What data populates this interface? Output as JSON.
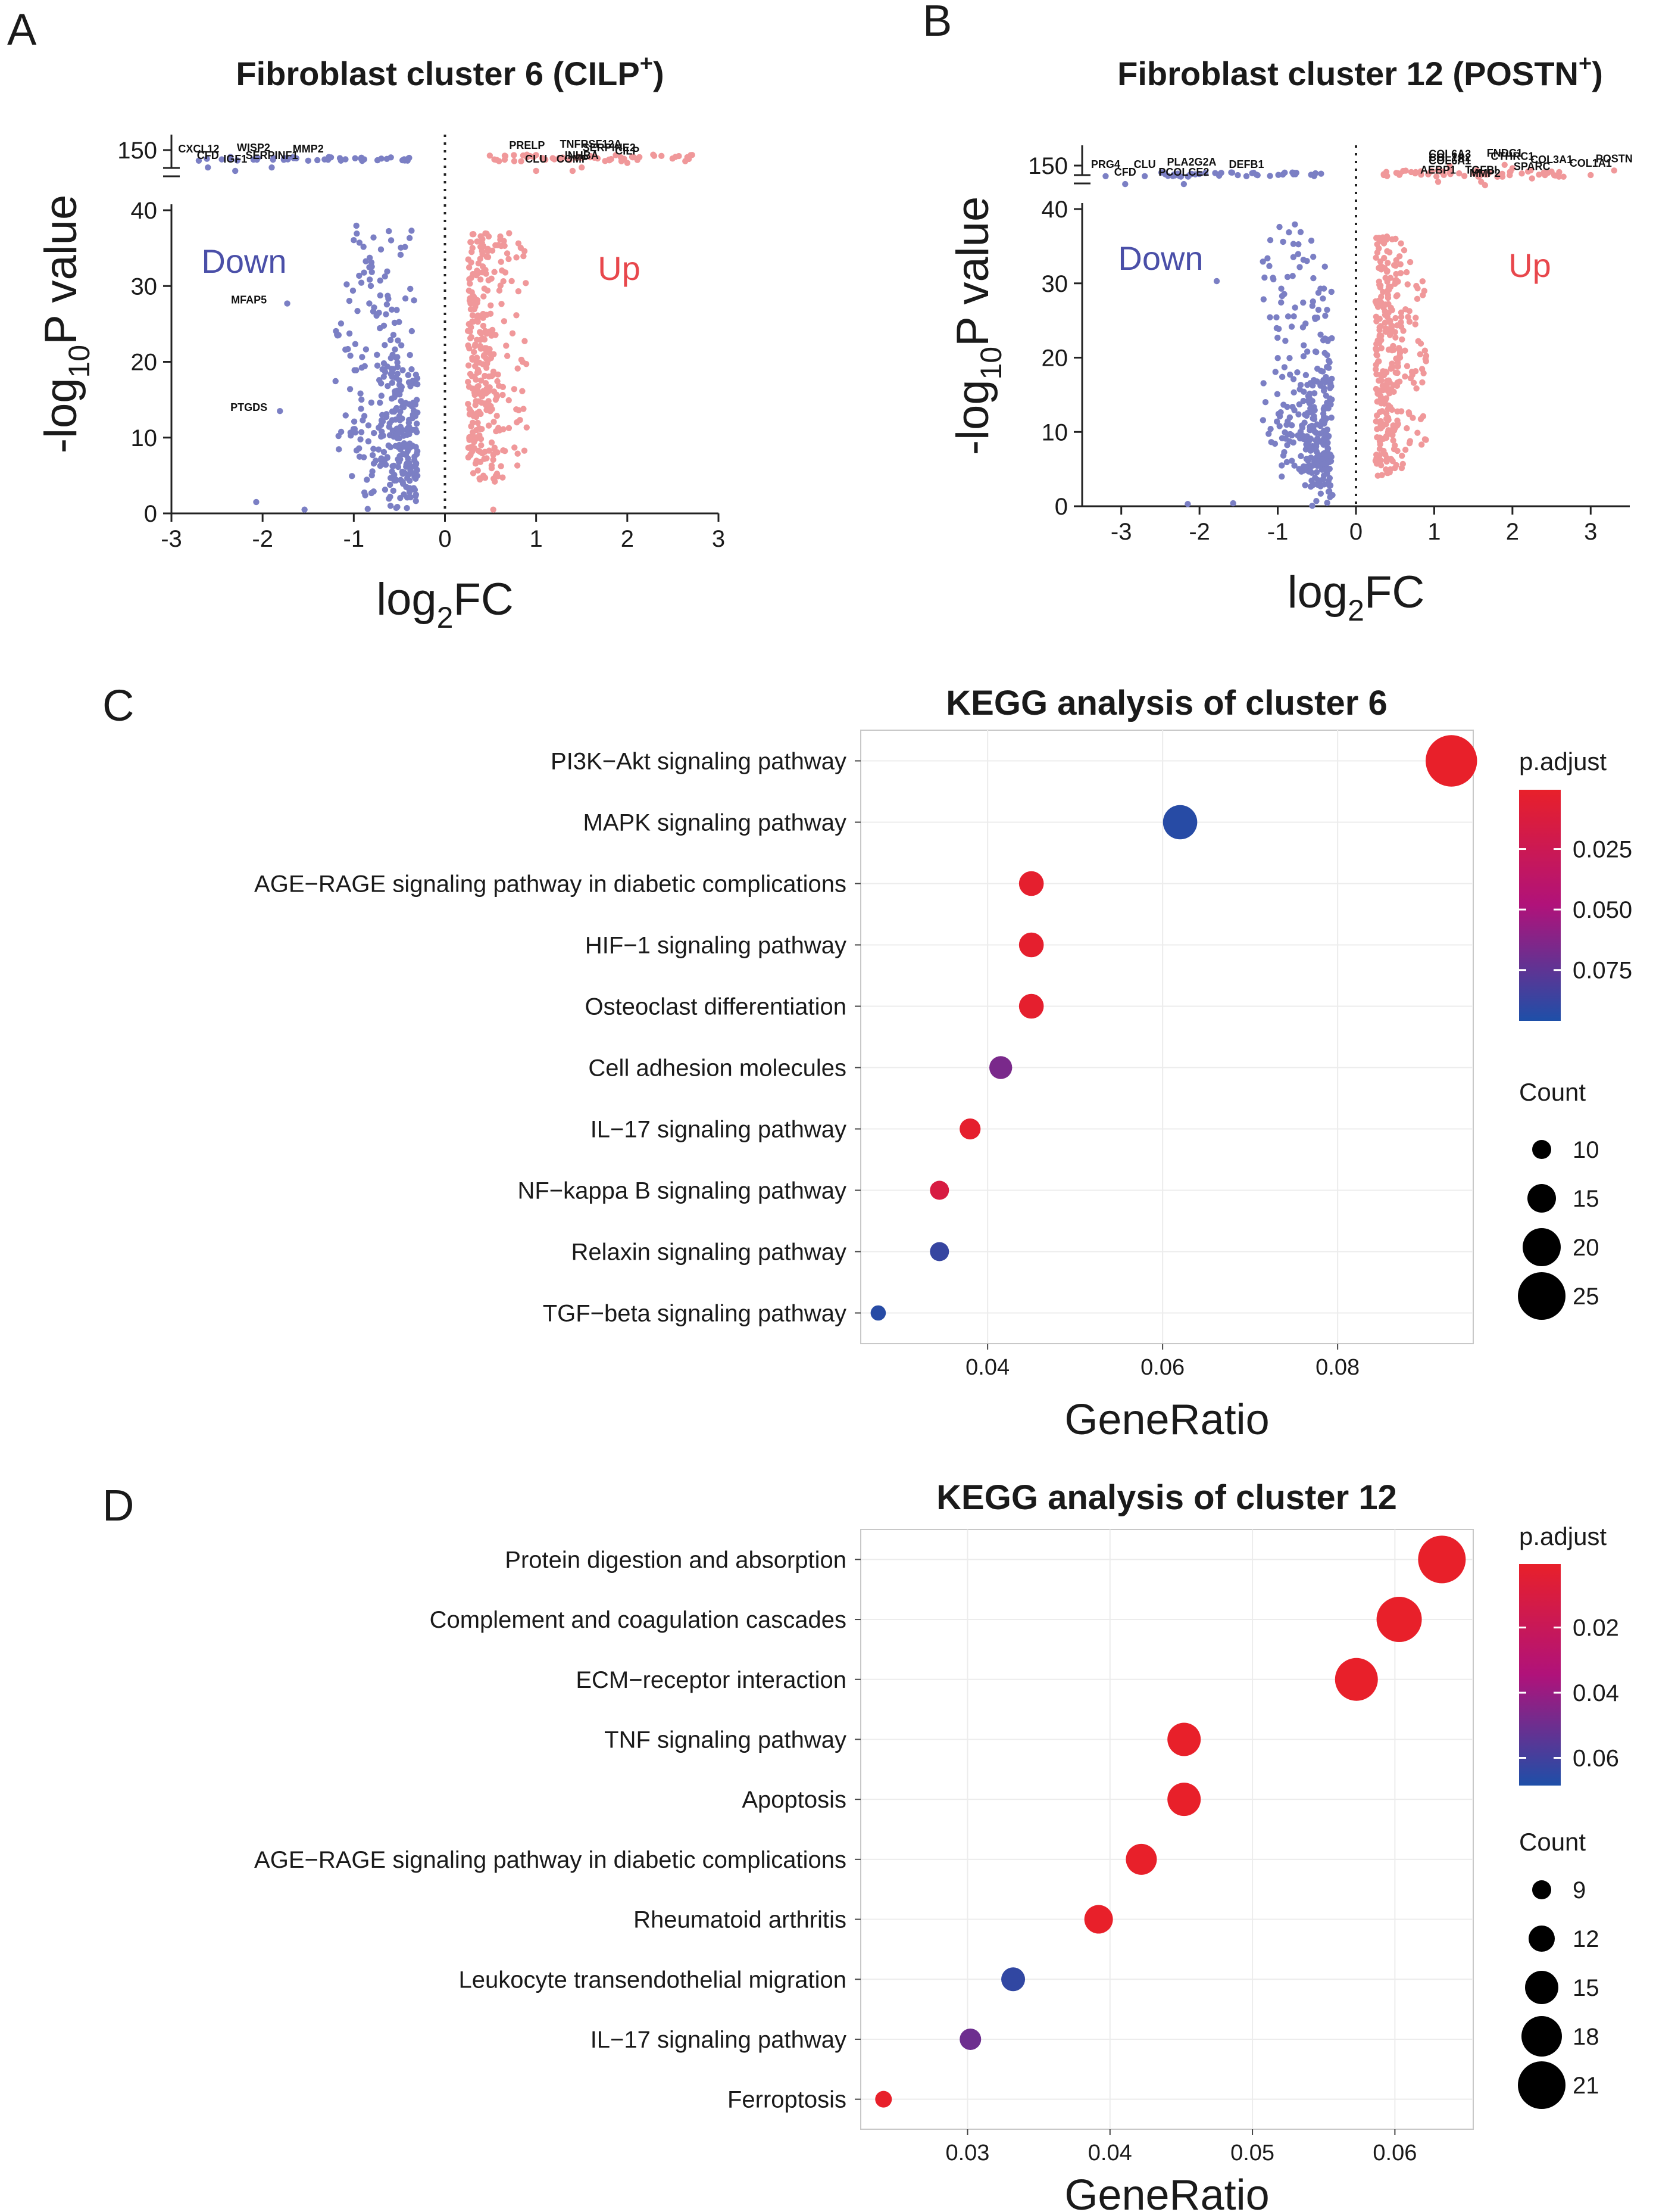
{
  "chart_data": [
    {
      "panel": "A",
      "type": "scatter",
      "title": "Fibroblast cluster 6 (CILP",
      "title_sup": "+",
      "title_close": ")",
      "xlabel_base": "log",
      "xlabel_sub": "2",
      "xlabel_end": "FC",
      "ylabel_pre": "-log",
      "ylabel_sub": "10",
      "ylabel_end": "P value",
      "xlim": [
        -3,
        3
      ],
      "ylim_lower": [
        0,
        40
      ],
      "upper_tick": 150,
      "xticks": [
        -3,
        -2,
        -1,
        0,
        1,
        2,
        3
      ],
      "xtick_labels": [
        "-3",
        "-2",
        "-1",
        "0",
        "1",
        "2",
        "3"
      ],
      "yticks": [
        0,
        10,
        20,
        30,
        40
      ],
      "ytick_labels": [
        "0",
        "10",
        "20",
        "30",
        "40"
      ],
      "upper_tick_label": "150",
      "down_label": "Down",
      "up_label": "Up",
      "colors": {
        "down": "#7b7fc4",
        "up": "#f0989a",
        "down_text": "#4a4fa8",
        "up_text": "#e8474c"
      },
      "gene_labels": [
        {
          "gene": "CXCL12",
          "x": -2.7,
          "y": 148,
          "lane": "upper"
        },
        {
          "gene": "WISP2",
          "x": -2.1,
          "y": 149,
          "lane": "upper"
        },
        {
          "gene": "MMP2",
          "x": -1.5,
          "y": 148,
          "lane": "upper"
        },
        {
          "gene": "CFD",
          "x": -2.6,
          "y": 142,
          "lane": "upper"
        },
        {
          "gene": "IGF1",
          "x": -2.3,
          "y": 139,
          "lane": "upper"
        },
        {
          "gene": "SERPINF1",
          "x": -1.9,
          "y": 142,
          "lane": "upper"
        },
        {
          "gene": "PRELP",
          "x": 0.9,
          "y": 151,
          "lane": "upper"
        },
        {
          "gene": "TNFRSF12A",
          "x": 1.6,
          "y": 152,
          "lane": "upper"
        },
        {
          "gene": "SERPINE2",
          "x": 1.8,
          "y": 149,
          "lane": "upper"
        },
        {
          "gene": "CILP",
          "x": 2.0,
          "y": 146,
          "lane": "upper"
        },
        {
          "gene": "INHBA",
          "x": 1.5,
          "y": 142,
          "lane": "upper"
        },
        {
          "gene": "CLU",
          "x": 1.0,
          "y": 139,
          "lane": "upper"
        },
        {
          "gene": "COMP",
          "x": 1.4,
          "y": 139,
          "lane": "upper"
        },
        {
          "gene": "MFAP5",
          "x": -2.15,
          "y": 27.7,
          "lane": "lower"
        },
        {
          "gene": "PTGDS",
          "x": -2.15,
          "y": 13.5,
          "lane": "lower"
        }
      ],
      "highlight_points": [
        {
          "x": -1.73,
          "y": 27.7
        },
        {
          "x": -1.81,
          "y": 13.5
        },
        {
          "x": -2.07,
          "y": 1.5
        },
        {
          "x": -1.54,
          "y": 0.5
        },
        {
          "x": 0.53,
          "y": 0.5
        }
      ]
    },
    {
      "panel": "B",
      "type": "scatter",
      "title": "Fibroblast cluster 12 (POSTN",
      "title_sup": "+",
      "title_close": ")",
      "xlabel_base": "log",
      "xlabel_sub": "2",
      "xlabel_end": "FC",
      "ylabel_pre": "-log",
      "ylabel_sub": "10",
      "ylabel_end": "P value",
      "xlim": [
        -3.5,
        3.5
      ],
      "ylim_lower": [
        0,
        40
      ],
      "upper_tick": 150,
      "xticks": [
        -3,
        -2,
        -1,
        0,
        1,
        2,
        3
      ],
      "xtick_labels": [
        "-3",
        "-2",
        "-1",
        "0",
        "1",
        "2",
        "3"
      ],
      "yticks": [
        0,
        10,
        20,
        30,
        40
      ],
      "ytick_labels": [
        "0",
        "10",
        "20",
        "30",
        "40"
      ],
      "upper_tick_label": "150",
      "down_label": "Down",
      "up_label": "Up",
      "colors": {
        "down": "#7b7fc4",
        "up": "#f0989a",
        "down_text": "#4a4fa8",
        "up_text": "#e8474c"
      },
      "gene_labels": [
        {
          "gene": "PRG4",
          "x": -3.2,
          "y": 148,
          "lane": "upper"
        },
        {
          "gene": "CLU",
          "x": -2.7,
          "y": 148,
          "lane": "upper"
        },
        {
          "gene": "PLA2G2A",
          "x": -2.1,
          "y": 150,
          "lane": "upper"
        },
        {
          "gene": "DEFB1",
          "x": -1.4,
          "y": 148,
          "lane": "upper"
        },
        {
          "gene": "CFD",
          "x": -2.95,
          "y": 141,
          "lane": "upper"
        },
        {
          "gene": "PCOLCE2",
          "x": -2.2,
          "y": 141,
          "lane": "upper"
        },
        {
          "gene": "COL6A3",
          "x": 1.2,
          "y": 157,
          "lane": "upper"
        },
        {
          "gene": "FNDC1",
          "x": 1.9,
          "y": 158,
          "lane": "upper"
        },
        {
          "gene": "COL1A2",
          "x": 1.2,
          "y": 154,
          "lane": "upper"
        },
        {
          "gene": "CTHRC1",
          "x": 2.0,
          "y": 155,
          "lane": "upper"
        },
        {
          "gene": "COL3A1",
          "x": 2.5,
          "y": 152,
          "lane": "upper"
        },
        {
          "gene": "POSTN",
          "x": 3.3,
          "y": 153,
          "lane": "upper"
        },
        {
          "gene": "COL6A1",
          "x": 1.2,
          "y": 151,
          "lane": "upper"
        },
        {
          "gene": "COL1A1",
          "x": 3.0,
          "y": 149,
          "lane": "upper"
        },
        {
          "gene": "SPARC",
          "x": 2.25,
          "y": 146,
          "lane": "upper"
        },
        {
          "gene": "AEBP1",
          "x": 1.05,
          "y": 143,
          "lane": "upper"
        },
        {
          "gene": "TGFBI",
          "x": 1.6,
          "y": 143,
          "lane": "upper"
        },
        {
          "gene": "MMP2",
          "x": 1.65,
          "y": 140,
          "lane": "upper"
        }
      ],
      "highlight_points": [
        {
          "x": -2.15,
          "y": 0.3
        },
        {
          "x": -1.57,
          "y": 0.4
        },
        {
          "x": -1.78,
          "y": 30.3
        }
      ]
    },
    {
      "panel": "C",
      "type": "scatter",
      "title": "KEGG analysis of cluster 6",
      "xlabel": "GeneRatio",
      "xlim": [
        0.0255,
        0.0955
      ],
      "xticks": [
        0.04,
        0.06,
        0.08
      ],
      "xtick_labels": [
        "0.04",
        "0.06",
        "0.08"
      ],
      "categories": [
        "PI3K−Akt signaling pathway",
        "MAPK signaling pathway",
        "AGE−RAGE signaling pathway in diabetic complications",
        "HIF−1 signaling pathway",
        "Osteoclast differentiation",
        "Cell adhesion molecules",
        "IL−17 signaling pathway",
        "NF−kappa B signaling pathway",
        "Relaxin signaling pathway",
        "TGF−beta signaling pathway"
      ],
      "gene_ratio": [
        0.093,
        0.062,
        0.045,
        0.045,
        0.045,
        0.0415,
        0.038,
        0.0345,
        0.0345,
        0.0275
      ],
      "count": [
        27,
        18,
        13,
        13,
        13,
        12,
        11,
        10,
        10,
        8
      ],
      "p_adjust": [
        0.0005,
        0.093,
        0.003,
        0.003,
        0.003,
        0.066,
        0.003,
        0.015,
        0.088,
        0.093
      ],
      "color_legend_title": "p.adjust",
      "color_ticks": [
        0.025,
        0.05,
        0.075
      ],
      "color_tick_labels": [
        "0.025",
        "0.050",
        "0.075"
      ],
      "color_range": [
        0.0005,
        0.096
      ],
      "size_legend_title": "Count",
      "size_values": [
        10,
        15,
        20,
        25
      ],
      "size_labels": [
        "10",
        "15",
        "20",
        "25"
      ],
      "colors": {
        "low": "#e8202a",
        "mid": "#b0127a",
        "high": "#1e4fa8"
      }
    },
    {
      "panel": "D",
      "type": "scatter",
      "title": "KEGG analysis of cluster 12",
      "xlabel": "GeneRatio",
      "xlim": [
        0.0225,
        0.0655
      ],
      "xticks": [
        0.03,
        0.04,
        0.05,
        0.06
      ],
      "xtick_labels": [
        "0.03",
        "0.04",
        "0.05",
        "0.06"
      ],
      "categories": [
        "Protein digestion and absorption",
        "Complement and coagulation cascades",
        "ECM−receptor interaction",
        "TNF signaling pathway",
        "Apoptosis",
        "AGE−RAGE signaling pathway in diabetic complications",
        "Rheumatoid arthritis",
        "Leukocyte transendothelial migration",
        "IL−17 signaling pathway",
        "Ferroptosis"
      ],
      "gene_ratio": [
        0.0633,
        0.0603,
        0.0573,
        0.0452,
        0.0452,
        0.0422,
        0.0392,
        0.0332,
        0.0302,
        0.0241
      ],
      "count": [
        21,
        20,
        19,
        15,
        15,
        14,
        13,
        11,
        10,
        8
      ],
      "p_adjust": [
        0.0005,
        0.0005,
        0.0005,
        0.0005,
        0.0005,
        0.0005,
        0.0005,
        0.064,
        0.05,
        0.0005
      ],
      "color_legend_title": "p.adjust",
      "color_ticks": [
        0.02,
        0.04,
        0.06
      ],
      "color_tick_labels": [
        "0.02",
        "0.04",
        "0.06"
      ],
      "color_range": [
        0.0005,
        0.0685
      ],
      "size_legend_title": "Count",
      "size_values": [
        9,
        12,
        15,
        18,
        21
      ],
      "size_labels": [
        "9",
        "12",
        "15",
        "18",
        "21"
      ],
      "colors": {
        "low": "#e8202a",
        "mid": "#b0127a",
        "high": "#1e4fa8"
      }
    }
  ],
  "panel_letters": [
    "A",
    "B",
    "C",
    "D"
  ]
}
